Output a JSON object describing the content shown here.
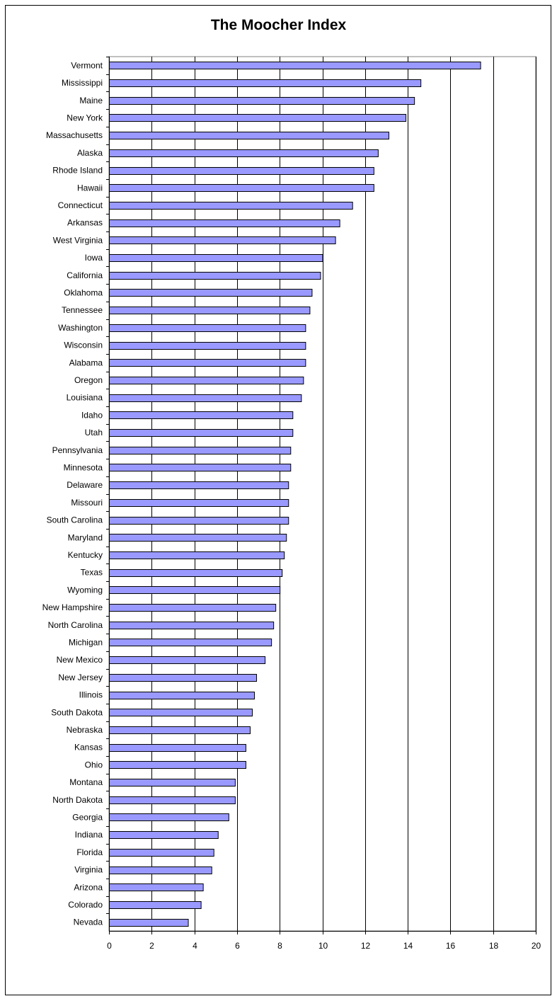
{
  "chart_data": {
    "type": "bar",
    "orientation": "horizontal",
    "title": "The Moocher Index",
    "xlabel": "",
    "ylabel": "",
    "xlim": [
      0,
      20
    ],
    "xticks": [
      0,
      2,
      4,
      6,
      8,
      10,
      12,
      14,
      16,
      18,
      20
    ],
    "grid": "vertical",
    "legend": "none",
    "bar_color": "#9999FF",
    "categories": [
      "Vermont",
      "Mississippi",
      "Maine",
      "New York",
      "Massachusetts",
      "Alaska",
      "Rhode Island",
      "Hawaii",
      "Connecticut",
      "Arkansas",
      "West Virginia",
      "Iowa",
      "California",
      "Oklahoma",
      "Tennessee",
      "Washington",
      "Wisconsin",
      "Alabama",
      "Oregon",
      "Louisiana",
      "Idaho",
      "Utah",
      "Pennsylvania",
      "Minnesota",
      "Delaware",
      "Missouri",
      "South Carolina",
      "Maryland",
      "Kentucky",
      "Texas",
      "Wyoming",
      "New Hampshire",
      "North Carolina",
      "Michigan",
      "New Mexico",
      "New Jersey",
      "Illinois",
      "South Dakota",
      "Nebraska",
      "Kansas",
      "Ohio",
      "Montana",
      "North Dakota",
      "Georgia",
      "Indiana",
      "Florida",
      "Virginia",
      "Arizona",
      "Colorado",
      "Nevada"
    ],
    "values": [
      17.4,
      14.6,
      14.3,
      13.9,
      13.1,
      12.6,
      12.4,
      12.4,
      11.4,
      10.8,
      10.6,
      10.0,
      9.9,
      9.5,
      9.4,
      9.2,
      9.2,
      9.2,
      9.1,
      9.0,
      8.6,
      8.6,
      8.5,
      8.5,
      8.4,
      8.4,
      8.4,
      8.3,
      8.2,
      8.1,
      8.0,
      7.8,
      7.7,
      7.6,
      7.3,
      6.9,
      6.8,
      6.7,
      6.6,
      6.4,
      6.4,
      5.9,
      5.9,
      5.6,
      5.1,
      4.9,
      4.8,
      4.4,
      4.3,
      3.7
    ]
  }
}
